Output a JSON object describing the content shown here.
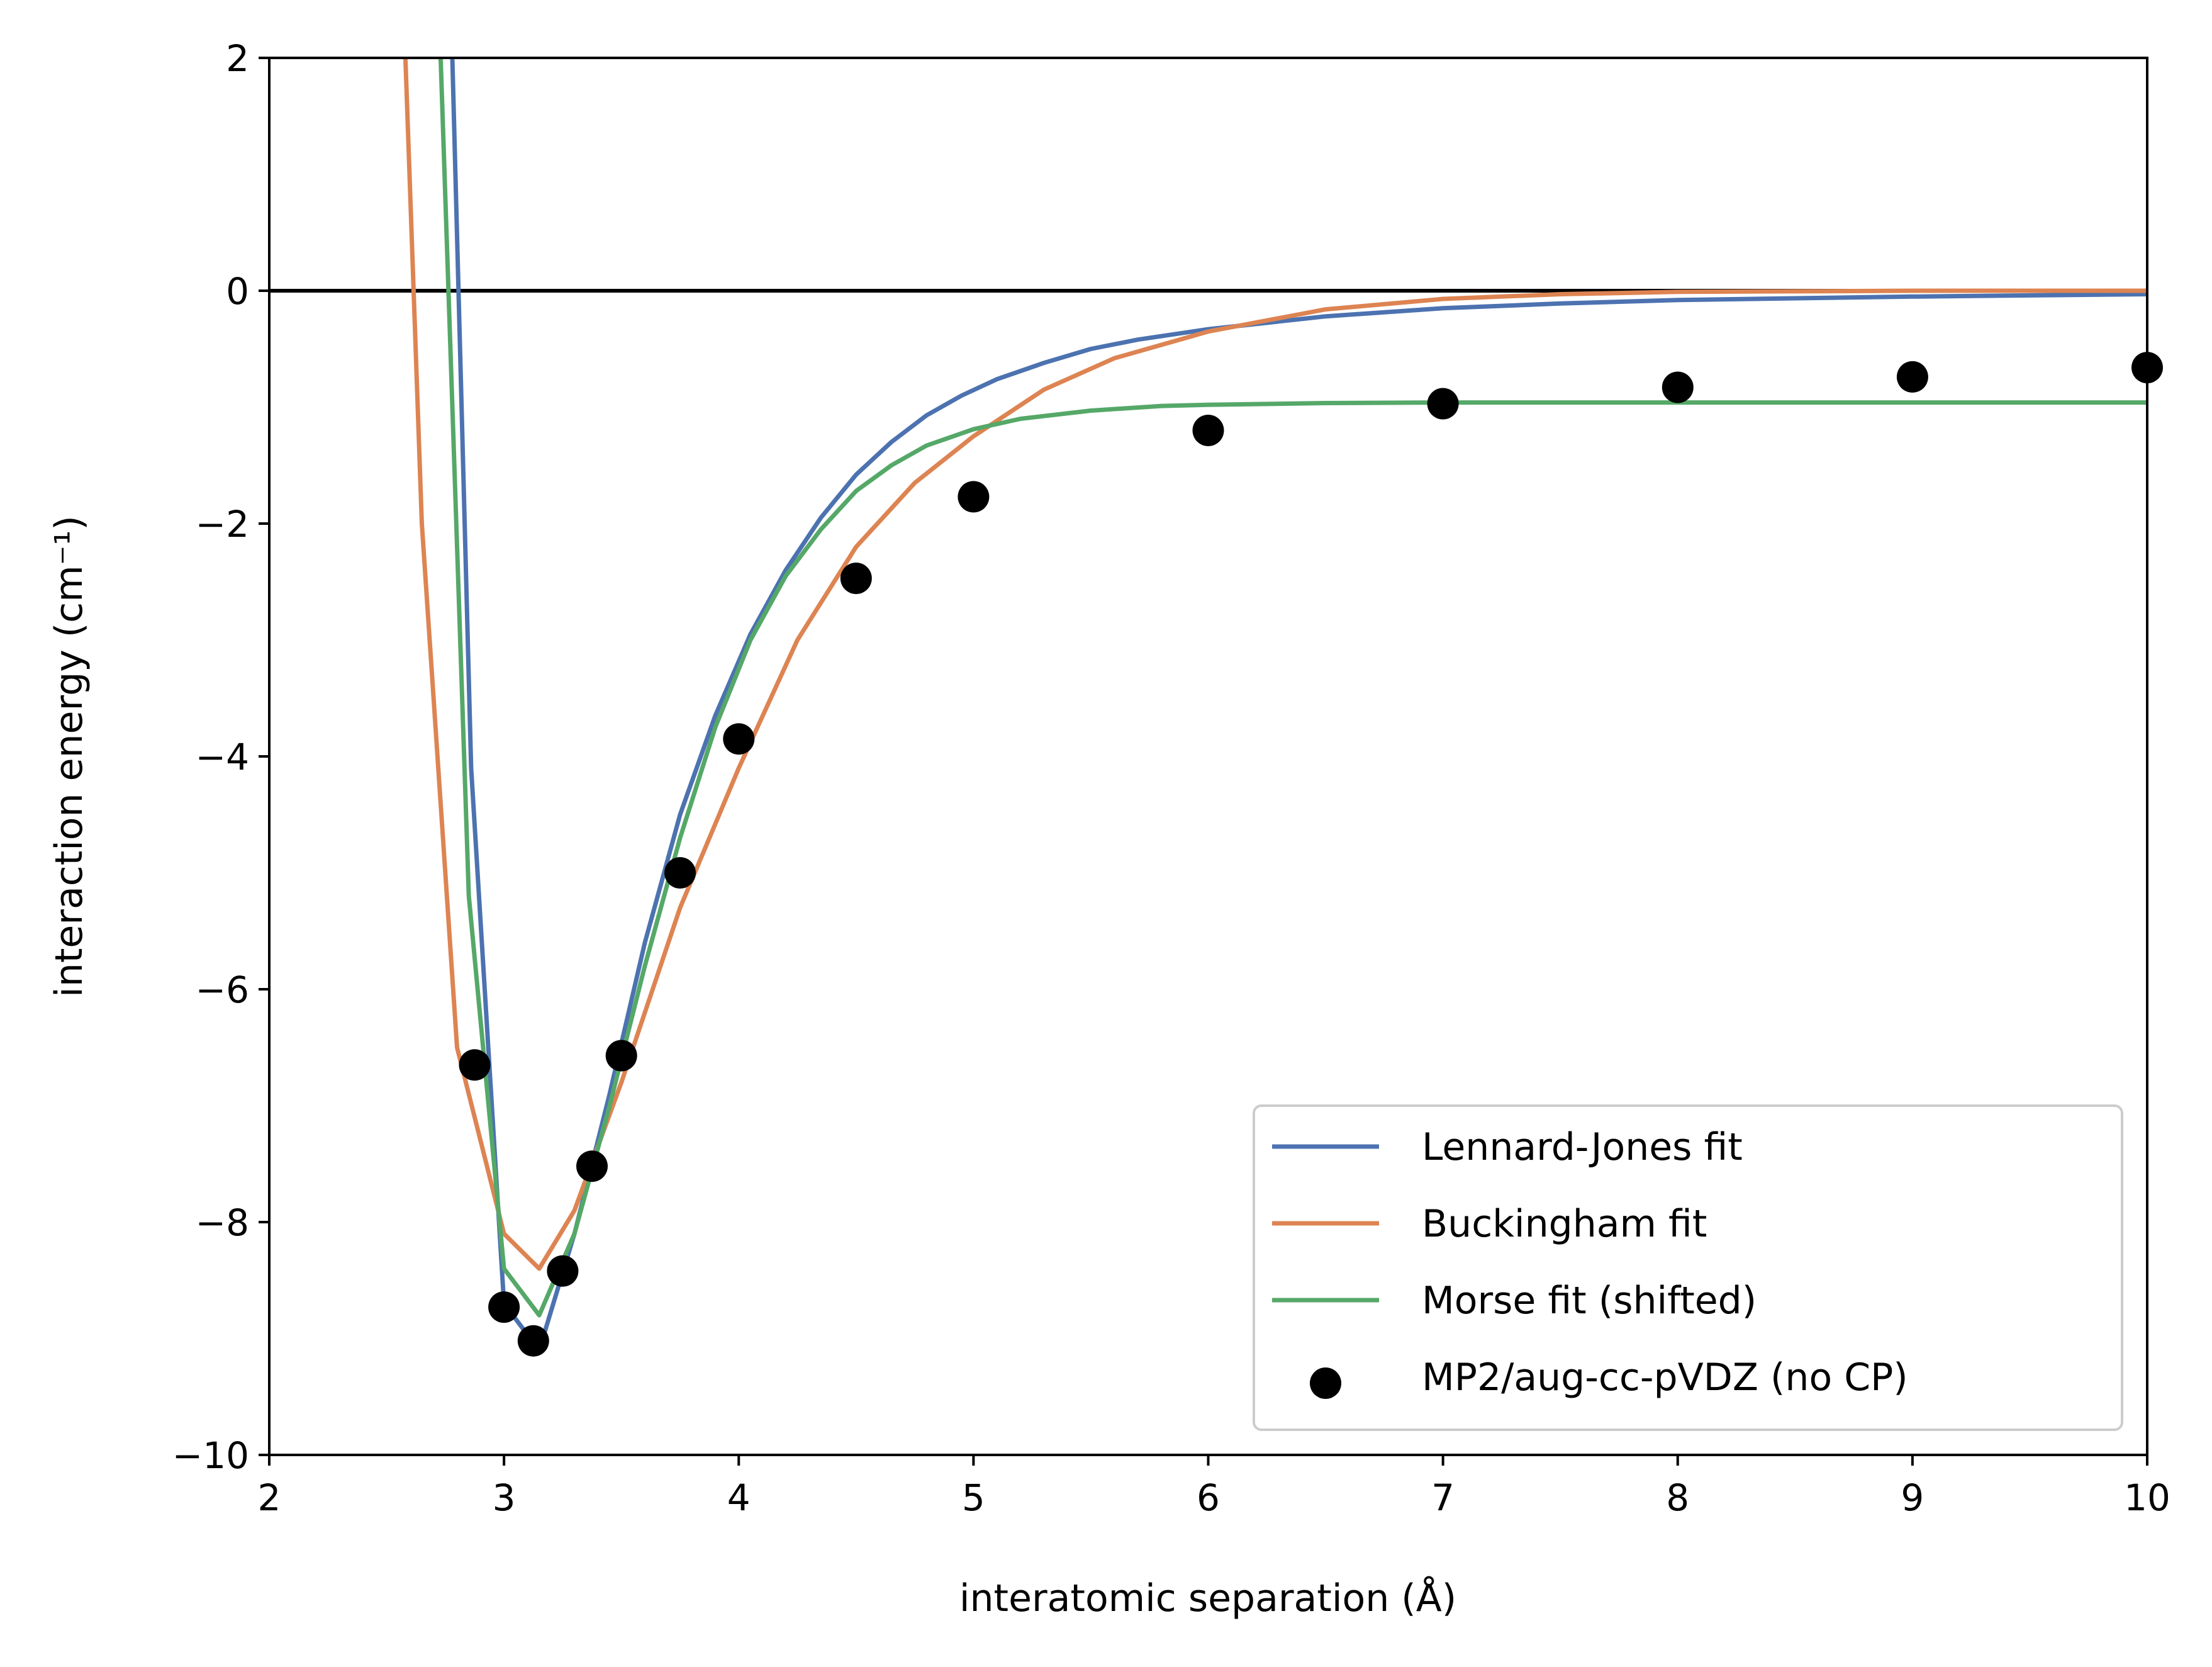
{
  "chart_data": {
    "type": "line",
    "title": "",
    "xlabel": "interatomic separation (Å)",
    "ylabel": "interaction energy (cm⁻¹)",
    "xlim": [
      2,
      10
    ],
    "ylim": [
      -10,
      2
    ],
    "xticks": [
      2,
      3,
      4,
      5,
      6,
      7,
      8,
      9,
      10
    ],
    "yticks": [
      2,
      0,
      -2,
      -4,
      -6,
      -8,
      -10
    ],
    "xtick_labels": [
      "2",
      "3",
      "4",
      "5",
      "6",
      "7",
      "8",
      "9",
      "10"
    ],
    "ytick_labels": [
      "2",
      "0",
      "−2",
      "−4",
      "−6",
      "−8",
      "−10"
    ],
    "grid": false,
    "legend_position": "lower right",
    "reference_line": {
      "y": 0,
      "color": "#000000"
    },
    "series": [
      {
        "name": "Lennard-Jones fit",
        "type": "line",
        "color": "#4c72b0",
        "x": [
          2.78,
          2.86,
          3.0,
          3.15,
          3.3,
          3.45,
          3.6,
          3.75,
          3.9,
          4.05,
          4.2,
          4.35,
          4.5,
          4.65,
          4.8,
          4.95,
          5.1,
          5.3,
          5.5,
          5.7,
          6.0,
          6.5,
          7.0,
          7.5,
          8.0,
          9.0,
          10.0
        ],
        "y": [
          2.0,
          -4.1,
          -8.7,
          -9.1,
          -8.1,
          -6.9,
          -5.6,
          -4.5,
          -3.65,
          -2.95,
          -2.4,
          -1.95,
          -1.58,
          -1.3,
          -1.07,
          -0.9,
          -0.76,
          -0.62,
          -0.5,
          -0.42,
          -0.33,
          -0.22,
          -0.15,
          -0.11,
          -0.08,
          -0.05,
          -0.03
        ]
      },
      {
        "name": "Buckingham fit",
        "type": "line",
        "color": "#dd8452",
        "x": [
          2.58,
          2.65,
          2.8,
          3.0,
          3.15,
          3.3,
          3.5,
          3.75,
          4.0,
          4.25,
          4.5,
          4.75,
          5.0,
          5.3,
          5.6,
          6.0,
          6.5,
          7.0,
          7.5,
          8.0,
          9.0,
          10.0
        ],
        "y": [
          2.0,
          -2.0,
          -6.5,
          -8.1,
          -8.4,
          -7.9,
          -6.8,
          -5.3,
          -4.1,
          -3.0,
          -2.2,
          -1.65,
          -1.25,
          -0.85,
          -0.58,
          -0.35,
          -0.16,
          -0.07,
          -0.03,
          -0.01,
          0.0,
          0.0
        ]
      },
      {
        "name": "Morse fit (shifted)",
        "type": "line",
        "color": "#55a868",
        "x": [
          2.73,
          2.85,
          3.0,
          3.15,
          3.3,
          3.45,
          3.6,
          3.75,
          3.9,
          4.05,
          4.2,
          4.35,
          4.5,
          4.65,
          4.8,
          5.0,
          5.2,
          5.5,
          5.8,
          6.0,
          6.5,
          7.0,
          7.5,
          8.0,
          9.0,
          10.0
        ],
        "y": [
          2.0,
          -5.2,
          -8.4,
          -8.8,
          -8.1,
          -7.0,
          -5.8,
          -4.7,
          -3.75,
          -3.0,
          -2.45,
          -2.05,
          -1.72,
          -1.5,
          -1.33,
          -1.19,
          -1.1,
          -1.03,
          -0.99,
          -0.98,
          -0.965,
          -0.96,
          -0.96,
          -0.96,
          -0.96,
          -0.96
        ]
      },
      {
        "name": "MP2/aug-cc-pVDZ (no CP)",
        "type": "scatter",
        "color": "#000000",
        "x": [
          2.875,
          3.0,
          3.125,
          3.25,
          3.375,
          3.5,
          3.75,
          4.0,
          4.5,
          5.0,
          6.0,
          7.0,
          8.0,
          9.0,
          10.0
        ],
        "y": [
          -6.65,
          -8.73,
          -9.02,
          -8.42,
          -7.52,
          -6.57,
          -5.0,
          -3.85,
          -2.47,
          -1.77,
          -1.2,
          -0.97,
          -0.83,
          -0.74,
          -0.66
        ]
      }
    ]
  }
}
